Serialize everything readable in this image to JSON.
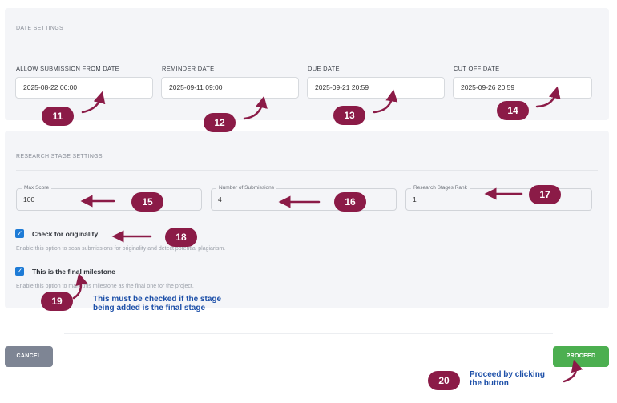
{
  "date_settings": {
    "title": "DATE SETTINGS",
    "fields": [
      {
        "label": "ALLOW SUBMISSION FROM DATE",
        "value": "2025-08-22 06:00"
      },
      {
        "label": "REMINDER DATE",
        "value": "2025-09-11 09:00"
      },
      {
        "label": "DUE DATE",
        "value": "2025-09-21 20:59"
      },
      {
        "label": "CUT OFF DATE",
        "value": "2025-09-26 20:59"
      }
    ]
  },
  "research_stage_settings": {
    "title": "RESEARCH STAGE SETTINGS",
    "fields": [
      {
        "label": "Max Score",
        "value": "100"
      },
      {
        "label": "Number of Submissions",
        "value": "4"
      },
      {
        "label": "Research Stages Rank",
        "value": "1"
      }
    ],
    "checks": [
      {
        "title": "Check for originality",
        "desc": "Enable this option to scan submissions for originality and detect potential plagiarism.",
        "checked": true
      },
      {
        "title": "This is the final milestone",
        "desc": "Enable this option to mark this milestone as the final one for the project.",
        "checked": true
      }
    ]
  },
  "buttons": {
    "cancel": "CANCEL",
    "proceed": "PROCEED"
  },
  "annotations": {
    "badges": [
      "11",
      "12",
      "13",
      "14",
      "15",
      "16",
      "17",
      "18",
      "19",
      "20"
    ],
    "note_final_line1": "This must be checked if the stage",
    "note_final_line2": "being added is the final stage",
    "note_proceed_line1": "Proceed by clicking",
    "note_proceed_line2": "the button"
  },
  "colors": {
    "badge": "#8b1b47",
    "checkbox": "#1e7bd6",
    "proceed": "#4caf50",
    "cancel": "#7e8594",
    "note": "#1c4fa8"
  }
}
